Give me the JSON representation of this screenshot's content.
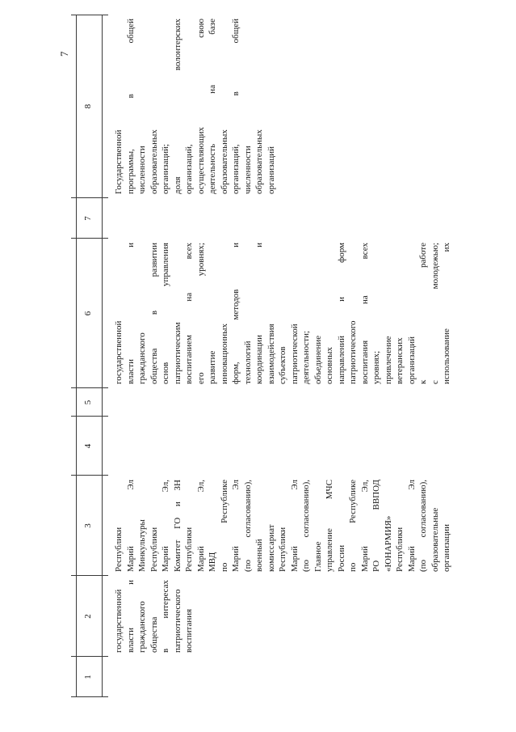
{
  "page_number": "7",
  "table": {
    "columns": [
      {
        "num": "1",
        "lines": []
      },
      {
        "num": "2",
        "lines": [
          "государственной",
          "власти и",
          "гражданского",
          "общества",
          "в интересах",
          "патриотического",
          "воспитания"
        ]
      },
      {
        "num": "3",
        "lines": [
          "Республики",
          "Марий Эл",
          "Минкультуры",
          "Республики",
          "Марий Эл,",
          "Комитет ГО и ЗН",
          "Республики",
          "Марий Эл,",
          "МВД",
          "по Республике",
          "Марий Эл",
          "(по согласованию),",
          "военный",
          "комиссариат",
          "Республики",
          "Марий Эл",
          "(по согласованию),",
          "Главное",
          "управление МЧС",
          "России",
          "по Республике",
          "Марий Эл,",
          "РО ВВПОД",
          "«ЮНАРМИЯ»",
          "Республики",
          "Марий Эл",
          "(по согласованию),",
          "образовательные",
          "организации"
        ]
      },
      {
        "num": "4",
        "lines": []
      },
      {
        "num": "5",
        "lines": []
      },
      {
        "num": "6",
        "lines": [
          "государственной",
          "власти и",
          "гражданского",
          "общества в развитии",
          "основ управления",
          "патриотическим",
          "воспитанием на всех",
          "его уровнях;",
          "развитие",
          "инновационных",
          "форм, методов и",
          "технологий",
          "координации и",
          "взаимодействия",
          "субъектов",
          "патриотической",
          "деятельности;",
          "объединение",
          "основных",
          "направлений и форм",
          "патриотического",
          "воспитания на всех",
          "уровнях;",
          "привлечение",
          "ветеранских",
          "организаций",
          "к работе",
          "с молодежью;",
          "использование их"
        ]
      },
      {
        "num": "7",
        "lines": []
      },
      {
        "num": "8",
        "lines": [
          "Государственной",
          "программы, в общей",
          "численности",
          "образовательных",
          "организаций;",
          "доля волонтерских",
          "организаций,",
          "осуществляющих свою",
          "деятельность на базе",
          "образовательных",
          "организаций, в общей",
          "численности",
          "образовательных",
          "организаций"
        ]
      }
    ]
  }
}
